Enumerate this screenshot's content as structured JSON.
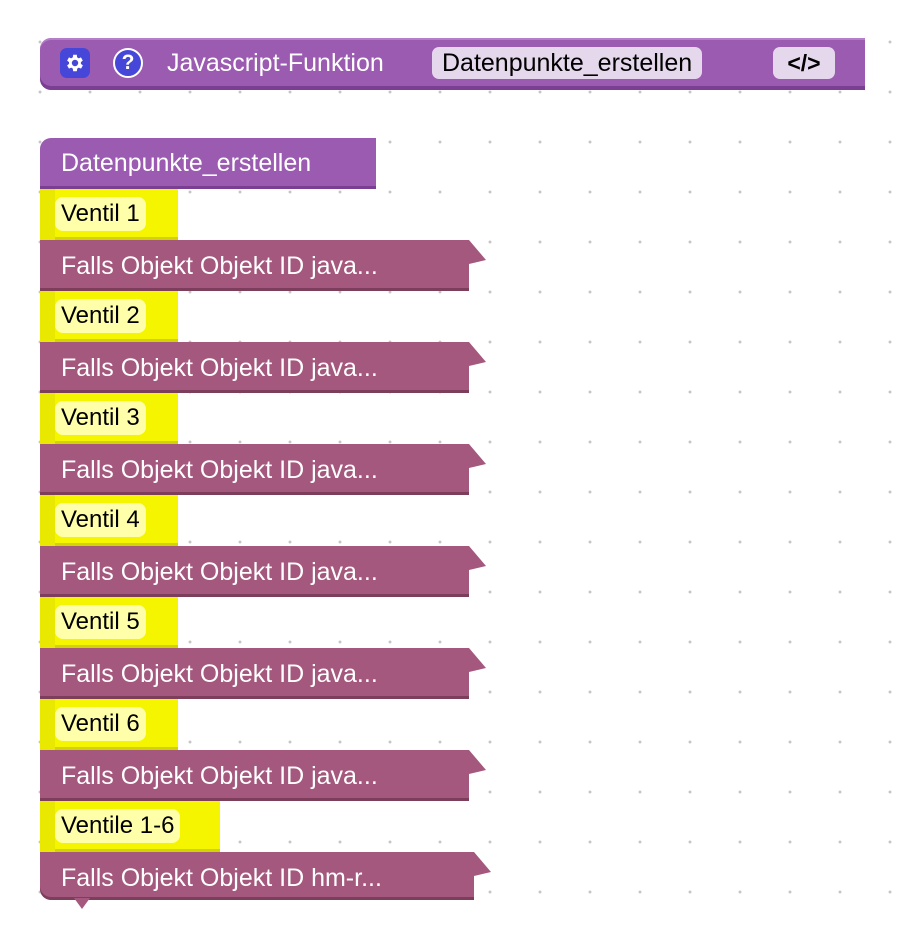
{
  "function_block": {
    "label": "Javascript-Funktion",
    "name": "Datenpunkte_erstellen",
    "code_button_label": "</>",
    "settings_icon": "gear-icon",
    "help_icon": "help-icon",
    "help_glyph": "?",
    "color": "#9a5bb0"
  },
  "call_block": {
    "label": "Datenpunkte_erstellen",
    "color": "#9a5bb0"
  },
  "statements": [
    {
      "comment": "Ventil 1",
      "action": "Falls Objekt Objekt ID java..."
    },
    {
      "comment": "Ventil 2",
      "action": "Falls Objekt Objekt ID java..."
    },
    {
      "comment": "Ventil 3",
      "action": "Falls Objekt Objekt ID java..."
    },
    {
      "comment": "Ventil 4",
      "action": "Falls Objekt Objekt ID java..."
    },
    {
      "comment": "Ventil 5",
      "action": "Falls Objekt Objekt ID java..."
    },
    {
      "comment": "Ventil 6",
      "action": "Falls Objekt Objekt ID java..."
    },
    {
      "comment": "Ventile 1-6",
      "action": "Falls Objekt Objekt ID hm-r..."
    }
  ],
  "colors": {
    "comment": "#f5f500",
    "comment_field": "#ffffaa",
    "action": "#a5587d",
    "icon": "#4646d8"
  }
}
